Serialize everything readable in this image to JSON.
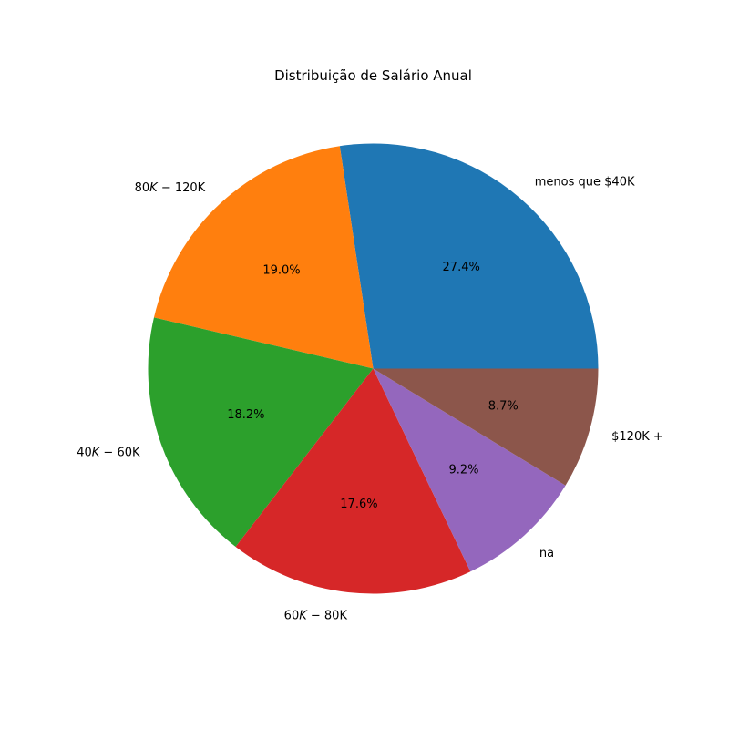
{
  "chart_data": {
    "type": "pie",
    "title": "Distribuição de Salário Anual",
    "labels": [
      "menos que $40K",
      "80K − 120K",
      "40K − 60K",
      "60K − 80K",
      "na",
      "$120K +"
    ],
    "label_display": [
      {
        "text": "menos que $40K",
        "italic_k": false
      },
      {
        "text": "80K − 120K",
        "italic_k": true
      },
      {
        "text": "40K − 60K",
        "italic_k": true
      },
      {
        "text": "60K − 80K",
        "italic_k": true
      },
      {
        "text": "na",
        "italic_k": false
      },
      {
        "text": "$120K +",
        "italic_k": false
      }
    ],
    "values": [
      27.4,
      19.0,
      18.2,
      17.6,
      9.2,
      8.7
    ],
    "percent_labels": [
      "27.4%",
      "19.0%",
      "18.2%",
      "17.6%",
      "9.2%",
      "8.7%"
    ],
    "colors": [
      "#1f77b4",
      "#ff7f0e",
      "#2ca02c",
      "#d62728",
      "#9467bd",
      "#8c564b"
    ],
    "start_angle_deg": 0,
    "direction": "counterclockwise"
  }
}
